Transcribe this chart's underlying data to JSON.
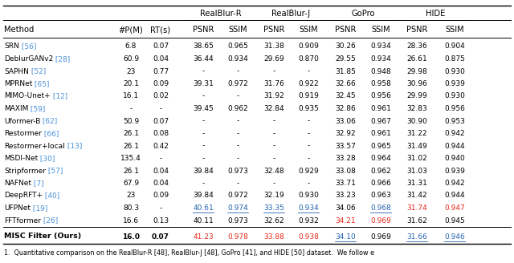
{
  "caption": "1.  Quantitative comparison on the RealBlur-R [48], RealBlur-J [48], GoPro [41], and HIDE [50] dataset.  We follow e",
  "rows": [
    {
      "method": "SRN",
      "ref": "56",
      "params": "6.8",
      "rt": "0.07",
      "rr_psnr": "38.65",
      "rr_ssim": "0.965",
      "rj_psnr": "31.38",
      "rj_ssim": "0.909",
      "go_psnr": "30.26",
      "go_ssim": "0.934",
      "hi_psnr": "28.36",
      "hi_ssim": "0.904"
    },
    {
      "method": "DeblurGANv2",
      "ref": "28",
      "params": "60.9",
      "rt": "0.04",
      "rr_psnr": "36.44",
      "rr_ssim": "0.934",
      "rj_psnr": "29.69",
      "rj_ssim": "0.870",
      "go_psnr": "29.55",
      "go_ssim": "0.934",
      "hi_psnr": "26.61",
      "hi_ssim": "0.875"
    },
    {
      "method": "SAPHN",
      "ref": "52",
      "params": "23",
      "rt": "0.77",
      "rr_psnr": "-",
      "rr_ssim": "-",
      "rj_psnr": "-",
      "rj_ssim": "-",
      "go_psnr": "31.85",
      "go_ssim": "0.948",
      "hi_psnr": "29.98",
      "hi_ssim": "0.930"
    },
    {
      "method": "MPRNet",
      "ref": "65",
      "params": "20.1",
      "rt": "0.09",
      "rr_psnr": "39.31",
      "rr_ssim": "0.972",
      "rj_psnr": "31.76",
      "rj_ssim": "0.922",
      "go_psnr": "32.66",
      "go_ssim": "0.958",
      "hi_psnr": "30.96",
      "hi_ssim": "0.939"
    },
    {
      "method": "MIMO-Unet+",
      "ref": "12",
      "params": "16.1",
      "rt": "0.02",
      "rr_psnr": "-",
      "rr_ssim": "-",
      "rj_psnr": "31.92",
      "rj_ssim": "0.919",
      "go_psnr": "32.45",
      "go_ssim": "0.956",
      "hi_psnr": "29.99",
      "hi_ssim": "0.930"
    },
    {
      "method": "MAXIM",
      "ref": "59",
      "params": "-",
      "rt": "-",
      "rr_psnr": "39.45",
      "rr_ssim": "0.962",
      "rj_psnr": "32.84",
      "rj_ssim": "0.935",
      "go_psnr": "32.86",
      "go_ssim": "0.961",
      "hi_psnr": "32.83",
      "hi_ssim": "0.956"
    },
    {
      "method": "Uformer-B",
      "ref": "62",
      "params": "50.9",
      "rt": "0.07",
      "rr_psnr": "-",
      "rr_ssim": "-",
      "rj_psnr": "-",
      "rj_ssim": "-",
      "go_psnr": "33.06",
      "go_ssim": "0.967",
      "hi_psnr": "30.90",
      "hi_ssim": "0.953"
    },
    {
      "method": "Restormer",
      "ref": "66",
      "params": "26.1",
      "rt": "0.08",
      "rr_psnr": "-",
      "rr_ssim": "-",
      "rj_psnr": "-",
      "rj_ssim": "-",
      "go_psnr": "32.92",
      "go_ssim": "0.961",
      "hi_psnr": "31.22",
      "hi_ssim": "0.942"
    },
    {
      "method": "Restormer+local",
      "ref": "13",
      "params": "26.1",
      "rt": "0.42",
      "rr_psnr": "-",
      "rr_ssim": "-",
      "rj_psnr": "-",
      "rj_ssim": "-",
      "go_psnr": "33.57",
      "go_ssim": "0.965",
      "hi_psnr": "31.49",
      "hi_ssim": "0.944"
    },
    {
      "method": "MSDI-Net",
      "ref": "30",
      "params": "135.4",
      "rt": "-",
      "rr_psnr": "-",
      "rr_ssim": "-",
      "rj_psnr": "-",
      "rj_ssim": "-",
      "go_psnr": "33.28",
      "go_ssim": "0.964",
      "hi_psnr": "31.02",
      "hi_ssim": "0.940"
    },
    {
      "method": "Stripformer",
      "ref": "57",
      "params": "26.1",
      "rt": "0.04",
      "rr_psnr": "39.84",
      "rr_ssim": "0.973",
      "rj_psnr": "32.48",
      "rj_ssim": "0.929",
      "go_psnr": "33.08",
      "go_ssim": "0.962",
      "hi_psnr": "31.03",
      "hi_ssim": "0.939"
    },
    {
      "method": "NAFNet",
      "ref": "7",
      "params": "67.9",
      "rt": "0.04",
      "rr_psnr": "-",
      "rr_ssim": "-",
      "rj_psnr": "-",
      "rj_ssim": "-",
      "go_psnr": "33.71",
      "go_ssim": "0.966",
      "hi_psnr": "31.31",
      "hi_ssim": "0.942"
    },
    {
      "method": "DeepRFT+",
      "ref": "40",
      "params": "23",
      "rt": "0.09",
      "rr_psnr": "39.84",
      "rr_ssim": "0.972",
      "rj_psnr": "32.19",
      "rj_ssim": "0.930",
      "go_psnr": "33.23",
      "go_ssim": "0.963",
      "hi_psnr": "31.42",
      "hi_ssim": "0.944"
    },
    {
      "method": "UFPNet",
      "ref": "19",
      "params": "80.3",
      "rt": "-",
      "rr_psnr": "40.61",
      "rr_ssim": "0.974",
      "rj_psnr": "33.35",
      "rj_ssim": "0.934",
      "go_psnr": "34.06",
      "go_ssim": "0.968",
      "hi_psnr": "31.74",
      "hi_ssim": "0.947"
    },
    {
      "method": "FFTformer",
      "ref": "26",
      "params": "16.6",
      "rt": "0.13",
      "rr_psnr": "40.11",
      "rr_ssim": "0.973",
      "rj_psnr": "32.62",
      "rj_ssim": "0.932",
      "go_psnr": "34.21",
      "go_ssim": "0.969",
      "hi_psnr": "31.62",
      "hi_ssim": "0.945"
    }
  ],
  "ours": {
    "method": "MISC Filter (Ours)",
    "params": "16.0",
    "rt": "0.07",
    "rr_psnr": "41.23",
    "rr_ssim": "0.978",
    "rj_psnr": "33.88",
    "rj_ssim": "0.938",
    "go_psnr": "34.10",
    "go_ssim": "0.969",
    "hi_psnr": "31.66",
    "hi_ssim": "0.946"
  },
  "cell_styles": {
    "UFPNet": {
      "rr_psnr": [
        "blue",
        true
      ],
      "rr_ssim": [
        "blue",
        true
      ],
      "rj_psnr": [
        "blue",
        true
      ],
      "rj_ssim": [
        "blue",
        true
      ],
      "go_ssim": [
        "blue",
        true
      ],
      "hi_psnr": [
        "red",
        false
      ],
      "hi_ssim": [
        "red",
        false
      ]
    },
    "FFTformer": {
      "go_psnr": [
        "red",
        false
      ],
      "go_ssim": [
        "red",
        false
      ]
    }
  },
  "ours_styles": {
    "rr_psnr": [
      "red",
      false
    ],
    "rr_ssim": [
      "red",
      false
    ],
    "rj_psnr": [
      "red",
      false
    ],
    "rj_ssim": [
      "red",
      false
    ],
    "go_psnr": [
      "blue",
      true
    ],
    "go_ssim": [
      "black",
      false
    ],
    "hi_psnr": [
      "blue",
      true
    ],
    "hi_ssim": [
      "blue",
      true
    ]
  },
  "ref_color": "#4a90d9",
  "red_color": "#e8291a",
  "blue_color": "#2563b0",
  "bg_color": "#ffffff",
  "col_keys": [
    "rr_psnr",
    "rr_ssim",
    "rj_psnr",
    "rj_ssim",
    "go_psnr",
    "go_ssim",
    "hi_psnr",
    "hi_ssim"
  ],
  "groups": [
    {
      "name": "RealBlur-R",
      "cols": [
        "rr_psnr",
        "rr_ssim"
      ]
    },
    {
      "name": "RealBlur-J",
      "cols": [
        "rj_psnr",
        "rj_ssim"
      ]
    },
    {
      "name": "GoPro",
      "cols": [
        "go_psnr",
        "go_ssim"
      ]
    },
    {
      "name": "HIDE",
      "cols": [
        "hi_psnr",
        "hi_ssim"
      ]
    }
  ]
}
